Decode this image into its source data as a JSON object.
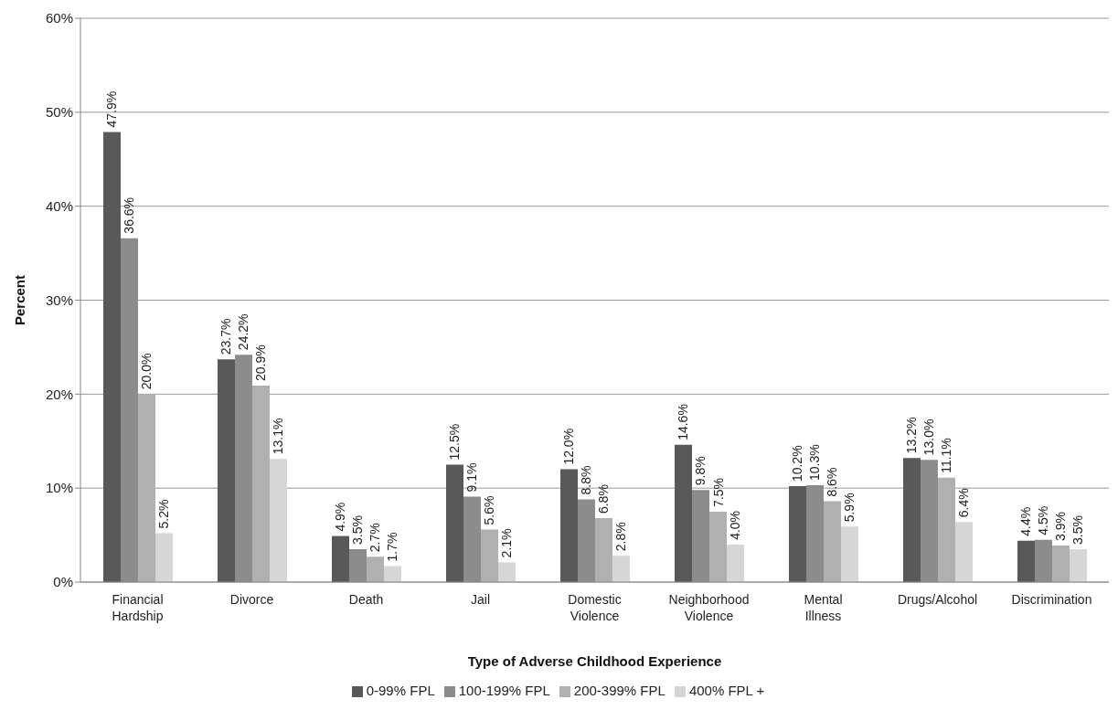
{
  "chart_data": {
    "type": "bar",
    "xlabel": "Type of Adverse Childhood Experience",
    "ylabel": "Percent",
    "categories": [
      "Financial Hardship",
      "Divorce",
      "Death",
      "Jail",
      "Domestic Violence",
      "Neighborhood Violence",
      "Mental Illness",
      "Drugs/Alcohol",
      "Discrimination"
    ],
    "series": [
      {
        "name": "0-99% FPL",
        "color": "#595959",
        "values": [
          47.9,
          23.7,
          4.9,
          12.5,
          12.0,
          14.6,
          10.2,
          13.2,
          4.4
        ],
        "value_labels": [
          "47.9%",
          "23.7%",
          "4.9%",
          "12.5%",
          "12.0%",
          "14.6%",
          "10.2%",
          "13.2%",
          "4.4%"
        ]
      },
      {
        "name": "100-199% FPL",
        "color": "#8c8c8c",
        "values": [
          36.6,
          24.2,
          3.5,
          9.1,
          8.8,
          9.8,
          10.3,
          13.0,
          4.5
        ],
        "value_labels": [
          "36.6%",
          "24.2%",
          "3.5%",
          "9.1%",
          "8.8%",
          "9.8%",
          "10.3%",
          "13.0%",
          "4.5%"
        ]
      },
      {
        "name": "200-399% FPL",
        "color": "#b0b0b0",
        "values": [
          20.0,
          20.9,
          2.7,
          5.6,
          6.8,
          7.5,
          8.6,
          11.1,
          3.9
        ],
        "value_labels": [
          "20.0%",
          "20.9%",
          "2.7%",
          "5.6%",
          "6.8%",
          "7.5%",
          "8.6%",
          "11.1%",
          "3.9%"
        ]
      },
      {
        "name": "400% FPL +",
        "color": "#d6d6d6",
        "values": [
          5.2,
          13.1,
          1.7,
          2.1,
          2.8,
          4.0,
          5.9,
          6.4,
          3.5
        ],
        "value_labels": [
          "5.2%",
          "13.1%",
          "1.7%",
          "2.1%",
          "2.8%",
          "4.0%",
          "5.9%",
          "6.4%",
          "3.5%"
        ]
      }
    ],
    "ylim": [
      0,
      60
    ],
    "yticks": [
      {
        "value": 0,
        "label": "0%"
      },
      {
        "value": 10,
        "label": "10%"
      },
      {
        "value": 20,
        "label": "20%"
      },
      {
        "value": 30,
        "label": "30%"
      },
      {
        "value": 40,
        "label": "40%"
      },
      {
        "value": 50,
        "label": "50%"
      },
      {
        "value": 60,
        "label": "60%"
      }
    ],
    "grid": "y",
    "legend": "bottom"
  }
}
